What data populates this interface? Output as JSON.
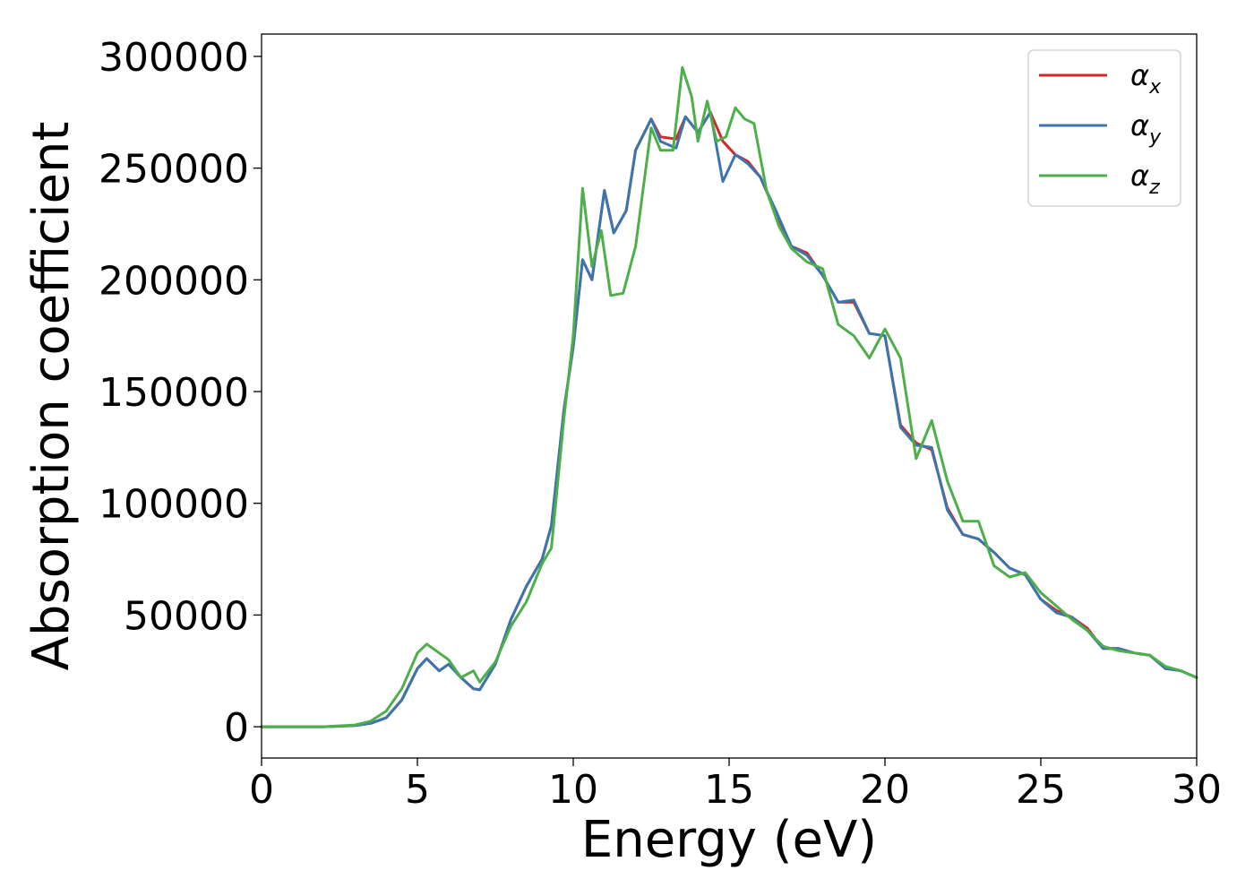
{
  "chart_data": {
    "type": "line",
    "title": "",
    "xlabel": "Energy (eV)",
    "ylabel": "Absorption coefficient",
    "xlim": [
      0,
      30
    ],
    "ylim": [
      -14000,
      310000
    ],
    "xticks": [
      0,
      5,
      10,
      15,
      20,
      25,
      30
    ],
    "yticks": [
      0,
      50000,
      100000,
      150000,
      200000,
      250000,
      300000
    ],
    "grid": false,
    "legend_position": "top-right",
    "series": [
      {
        "name": "α_x",
        "base": "α",
        "sub": "x",
        "color": "#d62728",
        "x": [
          0,
          1,
          2,
          3,
          3.5,
          4,
          4.5,
          5,
          5.3,
          5.7,
          6,
          6.4,
          6.8,
          7,
          7.5,
          8,
          8.5,
          9,
          9.3,
          9.7,
          10,
          10.3,
          10.6,
          11,
          11.3,
          11.7,
          12,
          12.5,
          12.8,
          13.3,
          13.6,
          14,
          14.4,
          14.8,
          15.2,
          15.6,
          16,
          16.5,
          17,
          17.5,
          18,
          18.5,
          19,
          19.5,
          20,
          20.5,
          21,
          21.5,
          22,
          22.5,
          23,
          23.5,
          24,
          24.5,
          25,
          25.5,
          26,
          26.5,
          27,
          27.5,
          28,
          28.5,
          29,
          29.5,
          30
        ],
        "y": [
          0,
          0,
          0,
          500,
          1500,
          4000,
          12000,
          26000,
          30500,
          25000,
          28000,
          22000,
          17000,
          16500,
          28000,
          48000,
          63000,
          75000,
          90000,
          142000,
          170000,
          209000,
          200000,
          240000,
          221000,
          231000,
          258000,
          272000,
          264000,
          263000,
          273000,
          266000,
          275000,
          262000,
          256000,
          253000,
          246000,
          230000,
          215000,
          212000,
          202000,
          190000,
          190000,
          176000,
          175000,
          135000,
          127000,
          124000,
          98000,
          86000,
          84000,
          78000,
          71000,
          68000,
          57000,
          52000,
          49000,
          44000,
          35000,
          35000,
          33000,
          32000,
          26000,
          25000,
          22000
        ]
      },
      {
        "name": "α_y",
        "base": "α",
        "sub": "y",
        "color": "#3b75af",
        "x": [
          0,
          1,
          2,
          3,
          3.5,
          4,
          4.5,
          5,
          5.3,
          5.7,
          6,
          6.4,
          6.8,
          7,
          7.5,
          8,
          8.5,
          9,
          9.3,
          9.7,
          10,
          10.3,
          10.6,
          11,
          11.3,
          11.7,
          12,
          12.5,
          12.8,
          13.3,
          13.6,
          14,
          14.4,
          14.8,
          15.2,
          15.6,
          16,
          16.5,
          17,
          17.5,
          18,
          18.5,
          19,
          19.5,
          20,
          20.5,
          21,
          21.5,
          22,
          22.5,
          23,
          23.5,
          24,
          24.5,
          25,
          25.5,
          26,
          26.5,
          27,
          27.5,
          28,
          28.5,
          29,
          29.5,
          30
        ],
        "y": [
          0,
          0,
          0,
          500,
          1500,
          4000,
          12000,
          26000,
          30500,
          25000,
          28000,
          22000,
          17000,
          16500,
          28000,
          48000,
          63000,
          75000,
          90000,
          142000,
          170000,
          209000,
          200000,
          240000,
          221000,
          231000,
          258000,
          272000,
          262000,
          259000,
          273000,
          266000,
          275000,
          244000,
          256000,
          252000,
          246000,
          231000,
          215000,
          211000,
          202000,
          190000,
          191000,
          176000,
          175000,
          134000,
          126000,
          125000,
          97000,
          86000,
          84000,
          78000,
          71000,
          68000,
          57000,
          51000,
          49000,
          43000,
          35000,
          35000,
          33000,
          32000,
          26000,
          25000,
          22000
        ]
      },
      {
        "name": "α_z",
        "base": "α",
        "sub": "z",
        "color": "#4daf4a",
        "x": [
          0,
          1,
          2,
          3,
          3.5,
          4,
          4.5,
          5,
          5.3,
          5.7,
          6,
          6.4,
          6.8,
          7,
          7.5,
          8,
          8.5,
          9,
          9.3,
          9.7,
          10,
          10.3,
          10.6,
          10.9,
          11.2,
          11.6,
          12,
          12.5,
          12.8,
          13.2,
          13.5,
          13.8,
          14,
          14.3,
          14.6,
          14.9,
          15.2,
          15.5,
          15.8,
          16.2,
          16.6,
          17,
          17.5,
          18,
          18.5,
          19,
          19.5,
          20,
          20.5,
          21,
          21.5,
          22,
          22.5,
          23,
          23.5,
          24,
          24.5,
          25,
          25.5,
          26,
          26.5,
          27,
          27.5,
          28,
          28.5,
          29,
          29.5,
          30
        ],
        "y": [
          0,
          0,
          0,
          800,
          2500,
          7000,
          17000,
          33000,
          37000,
          33000,
          30000,
          22000,
          25000,
          20000,
          29000,
          45000,
          56000,
          73000,
          80000,
          138000,
          175000,
          241000,
          206000,
          222000,
          193000,
          194000,
          215000,
          268000,
          258000,
          258000,
          295000,
          282000,
          262000,
          280000,
          262000,
          264000,
          277000,
          272000,
          270000,
          240000,
          224000,
          214000,
          208000,
          205000,
          180000,
          175000,
          165000,
          178000,
          165000,
          120000,
          137000,
          110000,
          92000,
          92000,
          72000,
          67000,
          69000,
          60000,
          54000,
          48000,
          43000,
          36000,
          34000,
          33000,
          32000,
          27000,
          25000,
          22000
        ]
      }
    ]
  }
}
